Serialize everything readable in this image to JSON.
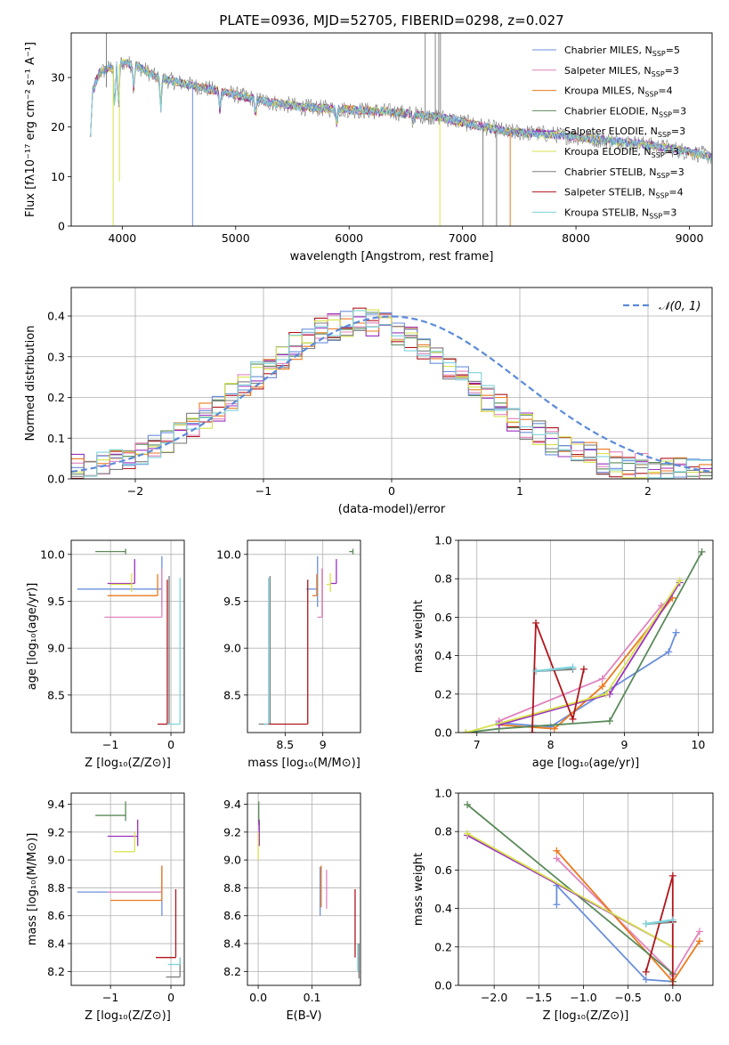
{
  "title": "PLATE=0936, MJD=52705, FIBERID=0298, z=0.027",
  "colors": {
    "Chabrier MILES": "#6a8fdc",
    "Salpeter MILES": "#e184bd",
    "Kroupa MILES": "#ea7a1f",
    "Chabrier ELODIE": "#5a8a5a",
    "Salpeter ELODIE": "#9b30c0",
    "Kroupa ELODIE": "#d6e24a",
    "Chabrier STELIB": "#7f7f7f",
    "Salpeter STELIB": "#b0161c",
    "Kroupa STELIB": "#7fd3dc"
  },
  "chart_data": [
    {
      "id": "spectrum",
      "type": "line",
      "title": "PLATE=0936, MJD=52705, FIBERID=0298, z=0.027",
      "xlabel": "wavelength [Angstrom, rest frame]",
      "ylabel": "Flux [fλ10⁻¹⁷ erg cm⁻² s⁻¹ A⁻¹]",
      "xlim": [
        3550,
        9200
      ],
      "ylim": [
        0,
        39
      ],
      "xticks": [
        4000,
        5000,
        6000,
        7000,
        8000,
        9000
      ],
      "yticks": [
        0,
        10,
        20,
        30
      ],
      "legend_position": "top-right",
      "legend": [
        {
          "name": "Chabrier MILES",
          "nssp": "5"
        },
        {
          "name": "Salpeter MILES",
          "nssp": "3"
        },
        {
          "name": "Kroupa MILES",
          "nssp": "4"
        },
        {
          "name": "Chabrier ELODIE",
          "nssp": "3"
        },
        {
          "name": "Salpeter ELODIE",
          "nssp": "3"
        },
        {
          "name": "Kroupa ELODIE",
          "nssp": "3"
        },
        {
          "name": "Chabrier STELIB",
          "nssp": "3"
        },
        {
          "name": "Salpeter STELIB",
          "nssp": "4"
        },
        {
          "name": "Kroupa STELIB",
          "nssp": "3"
        }
      ],
      "continuum": {
        "x": [
          3720,
          3800,
          3900,
          4000,
          4100,
          4200,
          4300,
          4500,
          4700,
          5000,
          5300,
          5600,
          6000,
          6400,
          6800,
          7100,
          7400,
          7800,
          8200,
          8600,
          9000,
          9200
        ],
        "y": [
          26,
          31,
          32,
          33,
          32.5,
          31.5,
          30,
          29,
          28,
          26.5,
          25,
          24,
          23.5,
          23,
          22,
          20.5,
          19,
          18.5,
          17.5,
          16.5,
          15,
          14
        ]
      }
    },
    {
      "id": "residuals",
      "type": "histogram",
      "xlabel": "(data-model)/error",
      "ylabel": "Normed distribution",
      "xlim": [
        -2.5,
        2.5
      ],
      "ylim": [
        0,
        0.47
      ],
      "xticks": [
        -2,
        -1,
        0,
        1,
        2
      ],
      "yticks": [
        0.0,
        0.1,
        0.2,
        0.3,
        0.4
      ],
      "grid": true,
      "gaussian_label": "𝒩(0, 1)",
      "legend_position": "top-right"
    },
    {
      "id": "age-vs-Z",
      "type": "errorbar",
      "xlabel": "Z [log₁₀(Z/Z⊙)]",
      "ylabel": "age  [log₁₀(age/yr)]",
      "xlim": [
        -1.65,
        0.22
      ],
      "ylim": [
        8.1,
        10.15
      ],
      "xticks": [
        -1,
        0
      ],
      "yticks": [
        8.5,
        9.0,
        9.5,
        10.0
      ],
      "grid": true,
      "bars": [
        {
          "series": "Chabrier MILES",
          "x": -1.55,
          "x2": -0.15,
          "y": 9.63,
          "ylo": 9.44,
          "yhi": 9.98
        },
        {
          "series": "Salpeter MILES",
          "x": -1.1,
          "x2": -0.15,
          "y": 9.33,
          "ylo": 9.33,
          "yhi": 9.85
        },
        {
          "series": "Kroupa MILES",
          "x": -1.05,
          "x2": -0.22,
          "y": 9.56,
          "ylo": 9.56,
          "yhi": 9.79
        },
        {
          "series": "Chabrier ELODIE",
          "x": -1.25,
          "x2": -0.75,
          "y": 10.03,
          "ylo": 10.0,
          "yhi": 10.06
        },
        {
          "series": "Salpeter ELODIE",
          "x": -1.05,
          "x2": -0.6,
          "y": 9.69,
          "ylo": 9.69,
          "yhi": 9.95
        },
        {
          "series": "Kroupa ELODIE",
          "x": -1.0,
          "x2": -0.65,
          "y": 9.68,
          "ylo": 9.6,
          "yhi": 9.8
        },
        {
          "series": "Chabrier STELIB",
          "x": -0.08,
          "x2": -0.03,
          "y": 8.19,
          "ylo": 8.19,
          "yhi": 9.77
        },
        {
          "series": "Salpeter STELIB",
          "x": -0.22,
          "x2": -0.06,
          "y": 8.19,
          "ylo": 8.19,
          "yhi": 9.73
        },
        {
          "series": "Kroupa STELIB",
          "x": -0.06,
          "x2": 0.15,
          "y": 8.19,
          "ylo": 8.19,
          "yhi": 9.75
        }
      ]
    },
    {
      "id": "age-vs-mass",
      "type": "errorbar",
      "xlabel": "mass [log₁₀(M/M⊙)]",
      "ylabel": "",
      "xlim": [
        8.0,
        9.5
      ],
      "ylim": [
        8.1,
        10.15
      ],
      "xticks": [
        8.5,
        9.0
      ],
      "yticks": [
        8.5,
        9.0,
        9.5,
        10.0
      ],
      "grid": true,
      "bars": [
        {
          "series": "Chabrier MILES",
          "x": 8.78,
          "x2": 8.93,
          "y": 9.63,
          "ylo": 9.44,
          "yhi": 9.98
        },
        {
          "series": "Salpeter MILES",
          "x": 8.93,
          "x2": 8.99,
          "y": 9.33,
          "ylo": 9.33,
          "yhi": 9.85
        },
        {
          "series": "Kroupa MILES",
          "x": 8.86,
          "x2": 8.92,
          "y": 9.56,
          "ylo": 9.56,
          "yhi": 9.79
        },
        {
          "series": "Chabrier ELODIE",
          "x": 9.35,
          "x2": 9.4,
          "y": 10.03,
          "ylo": 10.0,
          "yhi": 10.06
        },
        {
          "series": "Salpeter ELODIE",
          "x": 9.1,
          "x2": 9.18,
          "y": 9.69,
          "ylo": 9.69,
          "yhi": 9.95
        },
        {
          "series": "Kroupa ELODIE",
          "x": 9.05,
          "x2": 9.1,
          "y": 9.68,
          "ylo": 9.6,
          "yhi": 9.8
        },
        {
          "series": "Chabrier STELIB",
          "x": 8.15,
          "x2": 8.3,
          "y": 8.19,
          "ylo": 8.19,
          "yhi": 9.77
        },
        {
          "series": "Salpeter STELIB",
          "x": 8.25,
          "x2": 8.8,
          "y": 8.19,
          "ylo": 8.19,
          "yhi": 9.73
        },
        {
          "series": "Kroupa STELIB",
          "x": 8.22,
          "x2": 8.28,
          "y": 8.19,
          "ylo": 8.19,
          "yhi": 9.75
        }
      ]
    },
    {
      "id": "weight-vs-age",
      "type": "line",
      "xlabel": "age  [log₁₀(age/yr)]",
      "ylabel": "mass weight",
      "xlim": [
        6.75,
        10.2
      ],
      "ylim": [
        0,
        1.0
      ],
      "xticks": [
        7,
        8,
        9,
        10
      ],
      "yticks": [
        0.0,
        0.2,
        0.4,
        0.6,
        0.8,
        1.0
      ],
      "grid": true,
      "series": [
        {
          "name": "Chabrier MILES",
          "x": [
            7.3,
            8.0,
            9.6,
            9.7
          ],
          "y": [
            0.05,
            0.03,
            0.42,
            0.52
          ]
        },
        {
          "name": "Salpeter MILES",
          "x": [
            7.3,
            8.7,
            9.5,
            9.65
          ],
          "y": [
            0.06,
            0.28,
            0.66,
            0.7
          ]
        },
        {
          "name": "Kroupa MILES",
          "x": [
            7.3,
            8.05,
            8.7,
            9.65
          ],
          "y": [
            0.04,
            0.02,
            0.24,
            0.7
          ]
        },
        {
          "name": "Chabrier ELODIE",
          "x": [
            6.85,
            7.3,
            8.8,
            10.05
          ],
          "y": [
            0.0,
            0.02,
            0.06,
            0.94
          ]
        },
        {
          "name": "Salpeter ELODIE",
          "x": [
            7.3,
            8.8,
            9.75
          ],
          "y": [
            0.04,
            0.2,
            0.78
          ]
        },
        {
          "name": "Kroupa ELODIE",
          "x": [
            6.85,
            8.75,
            9.75
          ],
          "y": [
            0.0,
            0.2,
            0.79
          ]
        },
        {
          "name": "Chabrier STELIB",
          "x": [
            7.8,
            8.3
          ],
          "y": [
            0.32,
            0.33
          ]
        },
        {
          "name": "Salpeter STELIB",
          "x": [
            7.75,
            7.8,
            8.3,
            8.45
          ],
          "y": [
            0.0,
            0.57,
            0.07,
            0.33
          ]
        },
        {
          "name": "Kroupa STELIB",
          "x": [
            7.8,
            8.3
          ],
          "y": [
            0.32,
            0.34
          ]
        }
      ]
    },
    {
      "id": "mass-vs-Z",
      "type": "errorbar",
      "xlabel": "Z [log₁₀(Z/Z⊙)]",
      "ylabel": "mass [log₁₀(M/M⊙)]",
      "xlim": [
        -1.65,
        0.22
      ],
      "ylim": [
        8.1,
        9.48
      ],
      "xticks": [
        -1,
        0
      ],
      "yticks": [
        8.2,
        8.4,
        8.6,
        8.8,
        9.0,
        9.2,
        9.4
      ],
      "grid": true,
      "bars": [
        {
          "series": "Chabrier MILES",
          "x": -1.55,
          "x2": -0.15,
          "y": 8.77,
          "ylo": 8.6,
          "yhi": 8.95
        },
        {
          "series": "Salpeter MILES",
          "x": -1.05,
          "x2": -0.15,
          "y": 8.77,
          "ylo": 8.77,
          "yhi": 8.93
        },
        {
          "series": "Kroupa MILES",
          "x": -1.0,
          "x2": -0.15,
          "y": 8.71,
          "ylo": 8.71,
          "yhi": 8.96
        },
        {
          "series": "Chabrier ELODIE",
          "x": -1.25,
          "x2": -0.75,
          "y": 9.32,
          "ylo": 9.28,
          "yhi": 9.42
        },
        {
          "series": "Salpeter ELODIE",
          "x": -1.05,
          "x2": -0.55,
          "y": 9.17,
          "ylo": 9.1,
          "yhi": 9.29
        },
        {
          "series": "Kroupa ELODIE",
          "x": -0.95,
          "x2": -0.6,
          "y": 9.06,
          "ylo": 9.06,
          "yhi": 9.2
        },
        {
          "series": "Chabrier STELIB",
          "x": -0.08,
          "x2": 0.15,
          "y": 8.16,
          "ylo": 8.16,
          "yhi": 8.3
        },
        {
          "series": "Salpeter STELIB",
          "x": -0.25,
          "x2": 0.08,
          "y": 8.3,
          "ylo": 8.3,
          "yhi": 8.79
        },
        {
          "series": "Kroupa STELIB",
          "x": -0.05,
          "x2": 0.15,
          "y": 8.25,
          "ylo": 8.25,
          "yhi": 8.3
        }
      ]
    },
    {
      "id": "mass-vs-EBV",
      "type": "errorbar",
      "xlabel": "E(B-V)",
      "ylabel": "",
      "xlim": [
        -0.02,
        0.19
      ],
      "ylim": [
        8.1,
        9.48
      ],
      "xticks": [
        0.0,
        0.1
      ],
      "yticks": [
        8.2,
        8.4,
        8.6,
        8.8,
        9.0,
        9.2,
        9.4
      ],
      "grid": true,
      "bars": [
        {
          "series": "Chabrier MILES",
          "x": 0.115,
          "x2": 0.115,
          "y": 8.77,
          "ylo": 8.6,
          "yhi": 8.95
        },
        {
          "series": "Salpeter MILES",
          "x": 0.127,
          "x2": 0.127,
          "y": 8.77,
          "ylo": 8.65,
          "yhi": 8.93
        },
        {
          "series": "Kroupa MILES",
          "x": 0.117,
          "x2": 0.117,
          "y": 8.71,
          "ylo": 8.66,
          "yhi": 8.96
        },
        {
          "series": "Chabrier ELODIE",
          "x": 0.001,
          "x2": 0.001,
          "y": 9.32,
          "ylo": 9.25,
          "yhi": 9.42
        },
        {
          "series": "Salpeter ELODIE",
          "x": 0.002,
          "x2": 0.002,
          "y": 9.17,
          "ylo": 9.1,
          "yhi": 9.29
        },
        {
          "series": "Kroupa ELODIE",
          "x": 0.0,
          "x2": 0.0,
          "y": 9.06,
          "ylo": 9.0,
          "yhi": 9.2
        },
        {
          "series": "Chabrier STELIB",
          "x": 0.187,
          "x2": 0.187,
          "y": 8.16,
          "ylo": 8.15,
          "yhi": 8.4
        },
        {
          "series": "Salpeter STELIB",
          "x": 0.18,
          "x2": 0.18,
          "y": 8.3,
          "ylo": 8.3,
          "yhi": 8.79
        },
        {
          "series": "Kroupa STELIB",
          "x": 0.185,
          "x2": 0.185,
          "y": 8.25,
          "ylo": 8.2,
          "yhi": 8.4
        }
      ]
    },
    {
      "id": "weight-vs-Z",
      "type": "line",
      "xlabel": "Z [log₁₀(Z/Z⊙)]",
      "ylabel": "mass weight",
      "xlim": [
        -2.4,
        0.45
      ],
      "ylim": [
        0,
        1.0
      ],
      "xticks": [
        -2.0,
        -1.5,
        -1.0,
        -0.5,
        0.0
      ],
      "yticks": [
        0.0,
        0.2,
        0.4,
        0.6,
        0.8,
        1.0
      ],
      "grid": true,
      "series": [
        {
          "name": "Chabrier MILES",
          "x": [
            -1.3,
            -1.3,
            -0.3,
            0.0
          ],
          "y": [
            0.42,
            0.52,
            0.03,
            0.02
          ]
        },
        {
          "name": "Salpeter MILES",
          "x": [
            -1.3,
            0.0,
            0.0,
            0.3
          ],
          "y": [
            0.66,
            0.06,
            0.05,
            0.28
          ]
        },
        {
          "name": "Kroupa MILES",
          "x": [
            -1.3,
            0.0,
            0.3
          ],
          "y": [
            0.7,
            0.02,
            0.23
          ]
        },
        {
          "name": "Chabrier ELODIE",
          "x": [
            -2.3,
            0.0,
            0.0
          ],
          "y": [
            0.94,
            0.06,
            0.02
          ]
        },
        {
          "name": "Salpeter ELODIE",
          "x": [
            -2.3,
            0.0
          ],
          "y": [
            0.78,
            0.2
          ]
        },
        {
          "name": "Kroupa ELODIE",
          "x": [
            -2.3,
            0.0
          ],
          "y": [
            0.79,
            0.2
          ]
        },
        {
          "name": "Chabrier STELIB",
          "x": [
            -0.3,
            0.0
          ],
          "y": [
            0.32,
            0.33
          ]
        },
        {
          "name": "Salpeter STELIB",
          "x": [
            -0.3,
            0.0,
            0.0,
            0.0
          ],
          "y": [
            0.07,
            0.57,
            0.33,
            0.0
          ]
        },
        {
          "name": "Kroupa STELIB",
          "x": [
            -0.3,
            0.0
          ],
          "y": [
            0.32,
            0.34
          ]
        }
      ]
    }
  ]
}
